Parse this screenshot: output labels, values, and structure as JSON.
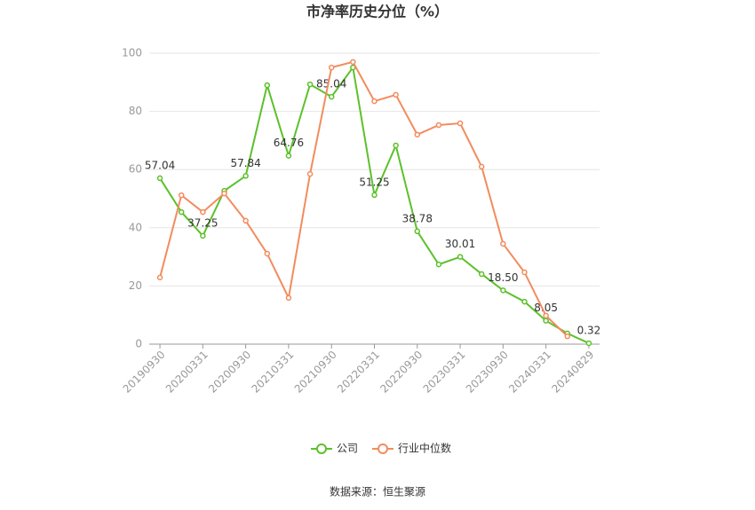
{
  "chart_data": {
    "type": "line",
    "title": "市净率历史分位（%）",
    "categories": [
      "20190930",
      null,
      "20200331",
      null,
      "20200930",
      null,
      "20210331",
      null,
      "20210930",
      null,
      "20220331",
      null,
      "20220930",
      null,
      "20230331",
      null,
      "20230930",
      null,
      "20240331",
      null,
      "20240829"
    ],
    "series": [
      {
        "name": "公司",
        "color": "#5cc12b",
        "values": [
          57.04,
          45.4,
          37.25,
          52.7,
          57.84,
          89.0,
          64.76,
          89.3,
          85.04,
          95.1,
          51.25,
          68.3,
          38.78,
          27.4,
          30.01,
          24.1,
          18.5,
          14.6,
          8.05,
          3.7,
          0.32
        ],
        "value_labels": [
          "57.04",
          null,
          "37.25",
          null,
          "57.84",
          null,
          "64.76",
          null,
          "85.04",
          null,
          "51.25",
          null,
          "38.78",
          null,
          "30.01",
          null,
          "18.50",
          null,
          "8.05",
          null,
          "0.32"
        ]
      },
      {
        "name": "行业中位数",
        "color": "#f28c5e",
        "values": [
          22.9,
          51.2,
          45.4,
          51.8,
          42.4,
          31.1,
          15.9,
          58.5,
          95.1,
          97.0,
          83.5,
          85.7,
          72.0,
          75.3,
          75.9,
          61.0,
          34.5,
          24.7,
          9.8,
          2.7,
          null
        ]
      }
    ],
    "ylim": [
      0,
      100
    ],
    "yticks": [
      0,
      20,
      40,
      60,
      80,
      100
    ],
    "grid": true,
    "legend": "bottom",
    "source": "数据来源：恒生聚源"
  }
}
